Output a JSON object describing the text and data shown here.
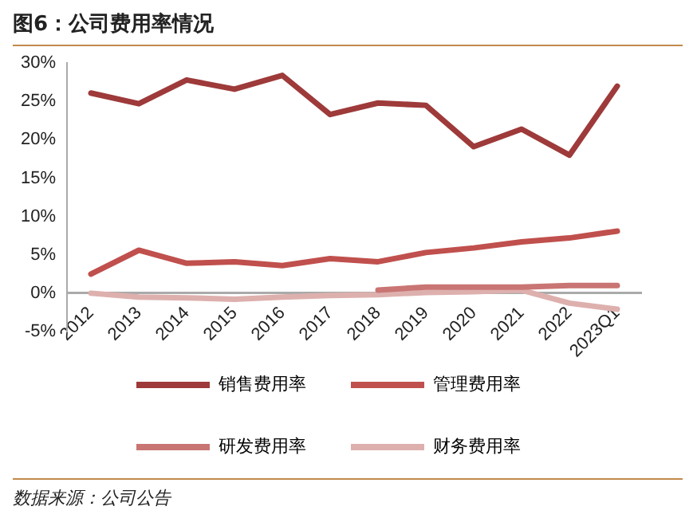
{
  "chart_data": {
    "type": "line",
    "title": "图6：公司费用率情况",
    "annotations": [
      "数据来源：公司公告"
    ],
    "categories": [
      "2012",
      "2013",
      "2014",
      "2015",
      "2016",
      "2017",
      "2018",
      "2019",
      "2020",
      "2021",
      "2022",
      "2023Q1"
    ],
    "series": [
      {
        "name": "销售费用率",
        "color": "#9e3a3a",
        "values": [
          26.1,
          24.7,
          27.8,
          26.6,
          28.4,
          23.3,
          24.8,
          24.5,
          19.1,
          21.4,
          18.0,
          27.0
        ]
      },
      {
        "name": "管理费用率",
        "color": "#c0504d",
        "values": [
          2.5,
          5.6,
          3.9,
          4.1,
          3.6,
          4.5,
          4.1,
          5.3,
          5.9,
          6.7,
          7.2,
          8.1
        ]
      },
      {
        "name": "研发费用率",
        "color": "#c97573",
        "values": [
          null,
          null,
          null,
          null,
          null,
          null,
          0.4,
          0.8,
          0.8,
          0.8,
          1.0,
          1.0
        ]
      },
      {
        "name": "财务费用率",
        "color": "#ddb0ae",
        "values": [
          0,
          -0.5,
          -0.6,
          -0.8,
          -0.5,
          -0.3,
          -0.2,
          0.1,
          0.2,
          0.4,
          -1.3,
          -2.1
        ]
      }
    ],
    "ylim": [
      -5,
      30
    ],
    "yticks": [
      {
        "value": -5,
        "label": "-5%"
      },
      {
        "value": 0,
        "label": "0%"
      },
      {
        "value": 5,
        "label": "5%"
      },
      {
        "value": 10,
        "label": "10%"
      },
      {
        "value": 15,
        "label": "15%"
      },
      {
        "value": 20,
        "label": "20%"
      },
      {
        "value": 25,
        "label": "25%"
      },
      {
        "value": 30,
        "label": "30%"
      }
    ],
    "grid": false,
    "legend": "bottom",
    "marker": "none",
    "line_style": "solid"
  }
}
